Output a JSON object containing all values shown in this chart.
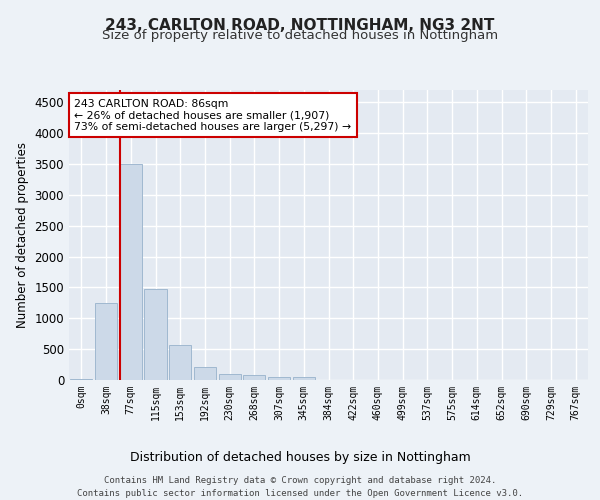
{
  "title1": "243, CARLTON ROAD, NOTTINGHAM, NG3 2NT",
  "title2": "Size of property relative to detached houses in Nottingham",
  "xlabel": "Distribution of detached houses by size in Nottingham",
  "ylabel": "Number of detached properties",
  "bar_labels": [
    "0sqm",
    "38sqm",
    "77sqm",
    "115sqm",
    "153sqm",
    "192sqm",
    "230sqm",
    "268sqm",
    "307sqm",
    "345sqm",
    "384sqm",
    "422sqm",
    "460sqm",
    "499sqm",
    "537sqm",
    "575sqm",
    "614sqm",
    "652sqm",
    "690sqm",
    "729sqm",
    "767sqm"
  ],
  "bar_values": [
    10,
    1250,
    3500,
    1470,
    560,
    215,
    105,
    75,
    50,
    45,
    5,
    0,
    0,
    0,
    0,
    0,
    0,
    0,
    0,
    0,
    0
  ],
  "bar_color": "#ccd9e8",
  "bar_edgecolor": "#a0b8d0",
  "vline_color": "#cc0000",
  "annotation_text": "243 CARLTON ROAD: 86sqm\n← 26% of detached houses are smaller (1,907)\n73% of semi-detached houses are larger (5,297) →",
  "annotation_box_color": "#ffffff",
  "annotation_box_edgecolor": "#cc0000",
  "ylim": [
    0,
    4700
  ],
  "yticks": [
    0,
    500,
    1000,
    1500,
    2000,
    2500,
    3000,
    3500,
    4000,
    4500
  ],
  "footer": "Contains HM Land Registry data © Crown copyright and database right 2024.\nContains public sector information licensed under the Open Government Licence v3.0.",
  "bg_color": "#edf2f7",
  "plot_bg_color": "#e4eaf2",
  "grid_color": "#ffffff",
  "title1_fontsize": 11,
  "title2_fontsize": 9.5
}
